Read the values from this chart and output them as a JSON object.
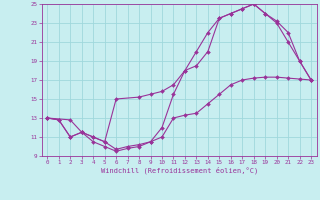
{
  "xlabel": "Windchill (Refroidissement éolien,°C)",
  "bg_color": "#c8eef0",
  "grid_color": "#a0d8dc",
  "line_color": "#993399",
  "xlim": [
    -0.5,
    23.5
  ],
  "ylim": [
    9,
    25
  ],
  "xticks": [
    0,
    1,
    2,
    3,
    4,
    5,
    6,
    7,
    8,
    9,
    10,
    11,
    12,
    13,
    14,
    15,
    16,
    17,
    18,
    19,
    20,
    21,
    22,
    23
  ],
  "yticks": [
    9,
    11,
    13,
    15,
    17,
    19,
    21,
    23,
    25
  ],
  "curve1_x": [
    0,
    1,
    2,
    3,
    4,
    5,
    6,
    7,
    8,
    9,
    10,
    11,
    12,
    13,
    14,
    15,
    16,
    17,
    18,
    19,
    20,
    21,
    22,
    23
  ],
  "curve1_y": [
    13,
    12.8,
    11,
    11.5,
    11,
    10.5,
    9.7,
    10,
    10.2,
    10.5,
    11,
    13,
    13.3,
    13.5,
    14.5,
    15.5,
    16.5,
    17,
    17.2,
    17.3,
    17.3,
    17.2,
    17.1,
    17
  ],
  "curve2_x": [
    0,
    1,
    2,
    3,
    4,
    5,
    6,
    7,
    8,
    9,
    10,
    11,
    12,
    13,
    14,
    15,
    16,
    17,
    18,
    19,
    20,
    21,
    22,
    23
  ],
  "curve2_y": [
    13,
    12.8,
    11,
    11.5,
    10.5,
    10,
    9.5,
    9.8,
    10,
    10.5,
    12,
    15.5,
    18,
    20,
    22,
    23.5,
    24,
    24.5,
    25,
    24,
    23,
    21,
    19,
    17
  ],
  "curve3_x": [
    0,
    2,
    3,
    4,
    5,
    6,
    8,
    9,
    10,
    11,
    12,
    13,
    14,
    15,
    16,
    17,
    18,
    19,
    20,
    21,
    22,
    23
  ],
  "curve3_y": [
    13,
    12.8,
    11.5,
    11,
    10.5,
    15,
    15.2,
    15.5,
    15.8,
    16.5,
    18,
    18.5,
    20,
    23.5,
    24,
    24.5,
    25,
    24,
    23.2,
    22,
    19,
    17
  ]
}
